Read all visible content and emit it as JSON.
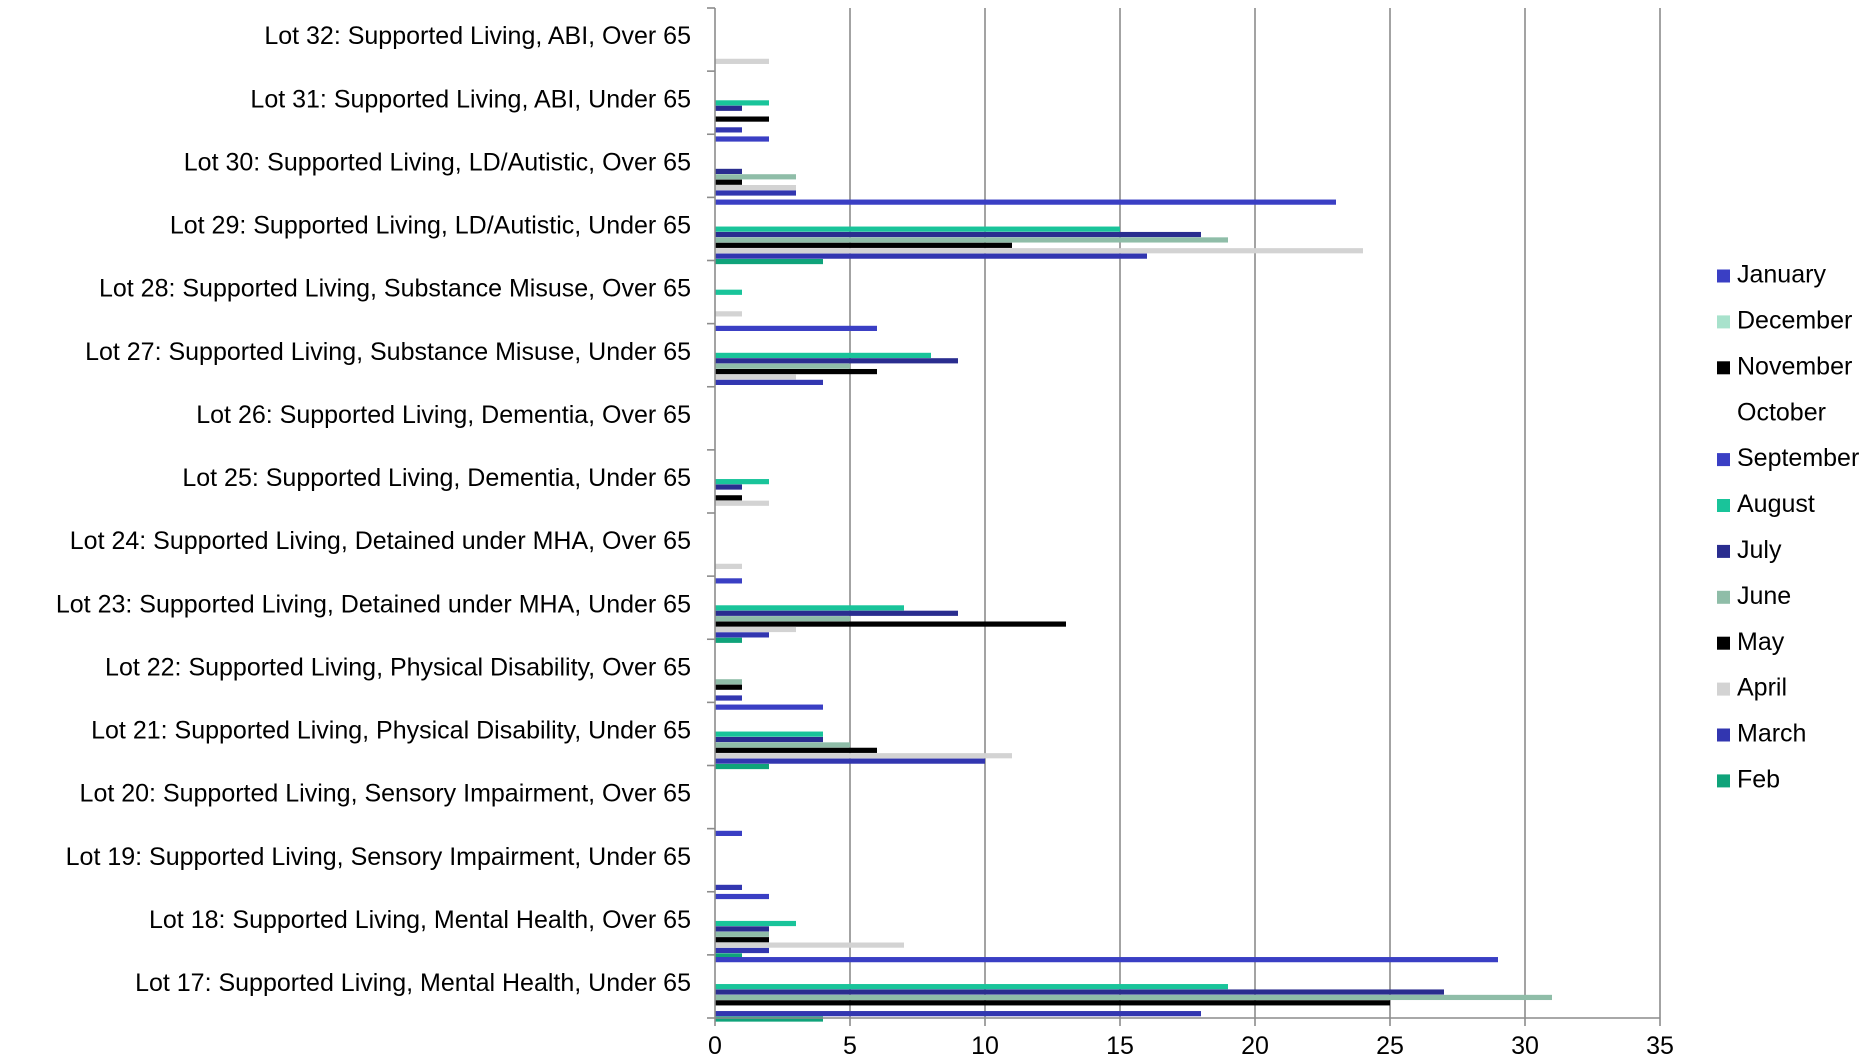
{
  "chart_data": {
    "type": "bar",
    "orientation": "horizontal",
    "title": "",
    "xlabel": "",
    "ylabel": "",
    "xlim": [
      0,
      35
    ],
    "xticks": [
      0,
      5,
      10,
      15,
      20,
      25,
      30,
      35
    ],
    "grid": "vertical",
    "legend_position": "right",
    "categories": [
      "Lot 32: Supported Living, ABI, Over 65",
      "Lot 31: Supported Living, ABI, Under 65",
      "Lot 30: Supported Living, LD/Autistic, Over 65",
      "Lot 29: Supported Living, LD/Autistic, Under 65",
      "Lot 28: Supported Living, Substance Misuse, Over 65",
      "Lot 27: Supported Living, Substance Misuse, Under 65",
      "Lot 26: Supported Living, Dementia, Over 65",
      "Lot 25: Supported Living, Dementia, Under 65",
      "Lot 24: Supported Living, Detained under MHA, Over 65",
      "Lot 23: Supported Living, Detained under MHA, Under 65",
      "Lot 22: Supported Living, Physical Disability, Over 65",
      "Lot 21: Supported Living, Physical Disability, Under 65",
      "Lot 20: Supported Living, Sensory Impairment, Over 65",
      "Lot 19: Supported Living, Sensory Impairment, Under 65",
      "Lot 18: Supported Living, Mental Health, Over 65",
      "Lot 17: Supported Living, Mental Health, Under 65"
    ],
    "series": [
      {
        "name": "January",
        "color": "#3a3fc4",
        "values": [
          0,
          0,
          2,
          23,
          0,
          6,
          0,
          0,
          0,
          1,
          0,
          4,
          0,
          1,
          2,
          29
        ]
      },
      {
        "name": "December",
        "color": "#a8e2cc",
        "values": [
          0,
          0,
          0,
          0,
          0,
          0,
          0,
          0,
          0,
          0,
          0,
          0,
          0,
          0,
          0,
          0
        ]
      },
      {
        "name": "November",
        "color": "#000000",
        "values": [
          0,
          0,
          0,
          0,
          0,
          0,
          0,
          0,
          0,
          0,
          0,
          0,
          0,
          0,
          0,
          0
        ]
      },
      {
        "name": "October",
        "color": "#ffffff",
        "values": [
          0,
          0,
          0,
          0,
          0,
          0,
          0,
          0,
          0,
          0,
          0,
          0,
          0,
          0,
          0,
          0
        ]
      },
      {
        "name": "September",
        "color": "#3a3fc4",
        "values": [
          0,
          0,
          0,
          0,
          0,
          0,
          0,
          0,
          0,
          0,
          0,
          0,
          0,
          0,
          0,
          0
        ]
      },
      {
        "name": "August",
        "color": "#19c49a",
        "values": [
          0,
          2,
          0,
          15,
          1,
          8,
          0,
          2,
          0,
          7,
          0,
          4,
          0,
          0,
          3,
          19
        ]
      },
      {
        "name": "July",
        "color": "#2a2d8f",
        "values": [
          0,
          1,
          1,
          18,
          0,
          9,
          0,
          1,
          0,
          9,
          0,
          4,
          0,
          0,
          2,
          27
        ]
      },
      {
        "name": "June",
        "color": "#8fbda8",
        "values": [
          0,
          0,
          3,
          19,
          0,
          5,
          0,
          0,
          0,
          5,
          1,
          5,
          0,
          0,
          2,
          31
        ]
      },
      {
        "name": "May",
        "color": "#000000",
        "values": [
          0,
          2,
          1,
          11,
          0,
          6,
          0,
          1,
          0,
          13,
          1,
          6,
          0,
          0,
          2,
          25
        ]
      },
      {
        "name": "April",
        "color": "#d3d3d3",
        "values": [
          2,
          0,
          3,
          24,
          1,
          3,
          0,
          2,
          1,
          3,
          0,
          11,
          0,
          0,
          7,
          0
        ]
      },
      {
        "name": "March",
        "color": "#3236b0",
        "values": [
          0,
          1,
          3,
          16,
          0,
          4,
          0,
          0,
          0,
          2,
          1,
          10,
          0,
          1,
          2,
          18
        ]
      },
      {
        "name": "Feb",
        "color": "#0fa37a",
        "values": [
          0,
          0,
          0,
          4,
          0,
          0,
          0,
          0,
          0,
          1,
          0,
          2,
          0,
          0,
          1,
          4
        ]
      }
    ]
  }
}
